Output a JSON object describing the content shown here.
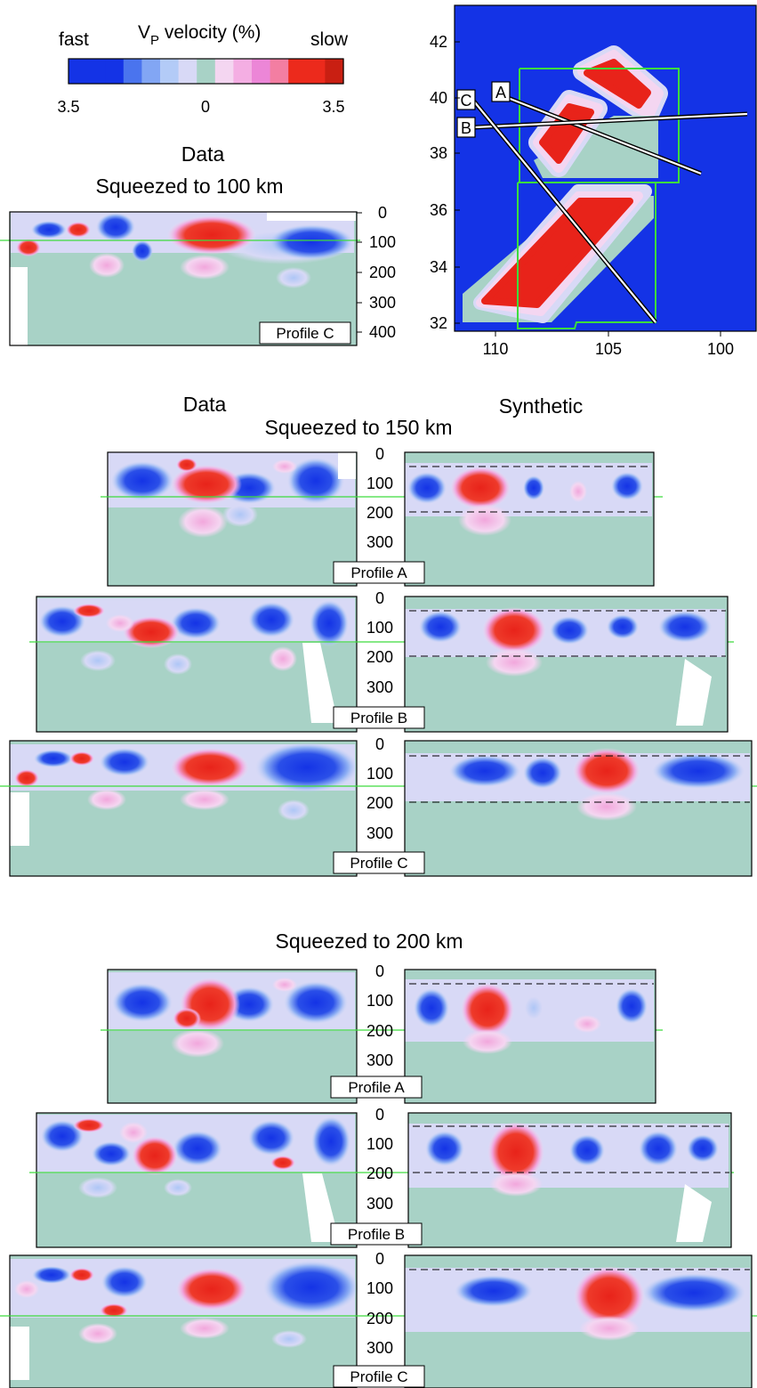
{
  "colorbar": {
    "fast_label": "fast",
    "slow_label": "slow",
    "title_main": "V",
    "title_sub": "P",
    "title_rest": " velocity (%)",
    "ticks": [
      "3.5",
      "0",
      "3.5"
    ],
    "colors": [
      "#1433e6",
      "#1433e6",
      "#1433e6",
      "#4a74ee",
      "#82a6f4",
      "#b3cbf7",
      "#d8d9f6",
      "#a8d2c6",
      "#f4d6f1",
      "#f4aee3",
      "#ec86d7",
      "#f37ea2",
      "#ec2a1c",
      "#ec2a1c",
      "#c91f12"
    ]
  },
  "palette": {
    "fast_strong": "#1433e6",
    "fast_medium": "#4a74ee",
    "fast_light": "#aec6f6",
    "fast_pale": "#d8d9f6",
    "neutral": "#a8d2c6",
    "slow_pale": "#f4d6f1",
    "slow_light": "#f2a7dc",
    "slow_strong": "#e8231a",
    "profile_line": "#3ddc3d"
  },
  "headings": {
    "data_top": "Data",
    "squeezed_100": "Squeezed to 100 km",
    "data_mid": "Data",
    "synthetic": "Synthetic",
    "squeezed_150": "Squeezed to 150 km",
    "squeezed_200": "Squeezed to 200 km"
  },
  "depth_ticks_400": [
    "0",
    "100",
    "200",
    "300",
    "400"
  ],
  "depth_ticks_300": [
    "0",
    "100",
    "200",
    "300"
  ],
  "profile_labels": {
    "p100_c": "Profile C",
    "p150_a": "Profile A",
    "p150_b": "Profile B",
    "p150_c": "Profile C",
    "p200_a": "Profile A",
    "p200_b": "Profile B",
    "p200_c": "Profile C"
  },
  "map": {
    "lat_ticks": [
      "42",
      "40",
      "38",
      "36",
      "34",
      "32"
    ],
    "lon_ticks": [
      "110",
      "105",
      "100"
    ],
    "profile_names": [
      "A",
      "B",
      "C"
    ]
  }
}
